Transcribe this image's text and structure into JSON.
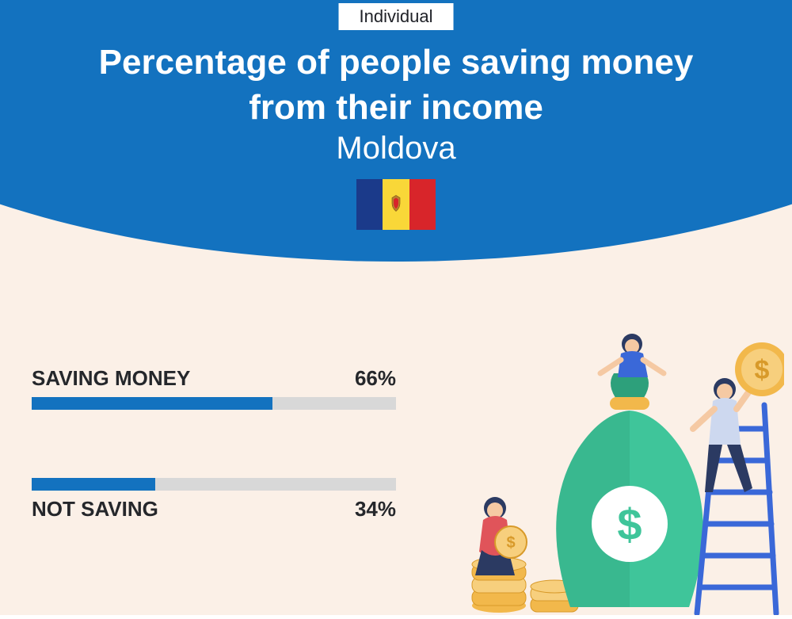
{
  "colors": {
    "page_bg": "#fbf0e7",
    "arc_bg": "#1372bf",
    "tag_bg": "#ffffff",
    "tag_text": "#202228",
    "title_text": "#ffffff",
    "country_text": "#ffffff",
    "bar_track": "#d8d8d8",
    "bar_fill": "#1372bf",
    "bar_label": "#25272b",
    "flag_blue": "#1b3a8a",
    "flag_yellow": "#f9d738",
    "flag_red": "#d8252a",
    "illus_bag": "#3fc59a",
    "illus_bag_dark": "#2da07b",
    "illus_coin": "#f2b84b",
    "illus_coin_face": "#f7cf7d",
    "illus_ladder": "#3a68d8",
    "illus_person1": "#2b3a62",
    "illus_person2": "#2b3a62",
    "illus_skin": "#f5c9a3",
    "illus_shirt_light": "#cdd8ef"
  },
  "header": {
    "tag": "Individual",
    "title_line1": "Percentage of people saving money",
    "title_line2": "from their income",
    "country": "Moldova"
  },
  "bars": [
    {
      "label": "SAVING MONEY",
      "value": 66,
      "value_text": "66%",
      "label_pos": "above"
    },
    {
      "label": "NOT SAVING",
      "value": 34,
      "value_text": "34%",
      "label_pos": "below"
    }
  ],
  "typography": {
    "title_size": 44,
    "title_weight": 800,
    "country_size": 40,
    "tag_size": 22,
    "bar_label_size": 26,
    "bar_label_weight": 800
  }
}
